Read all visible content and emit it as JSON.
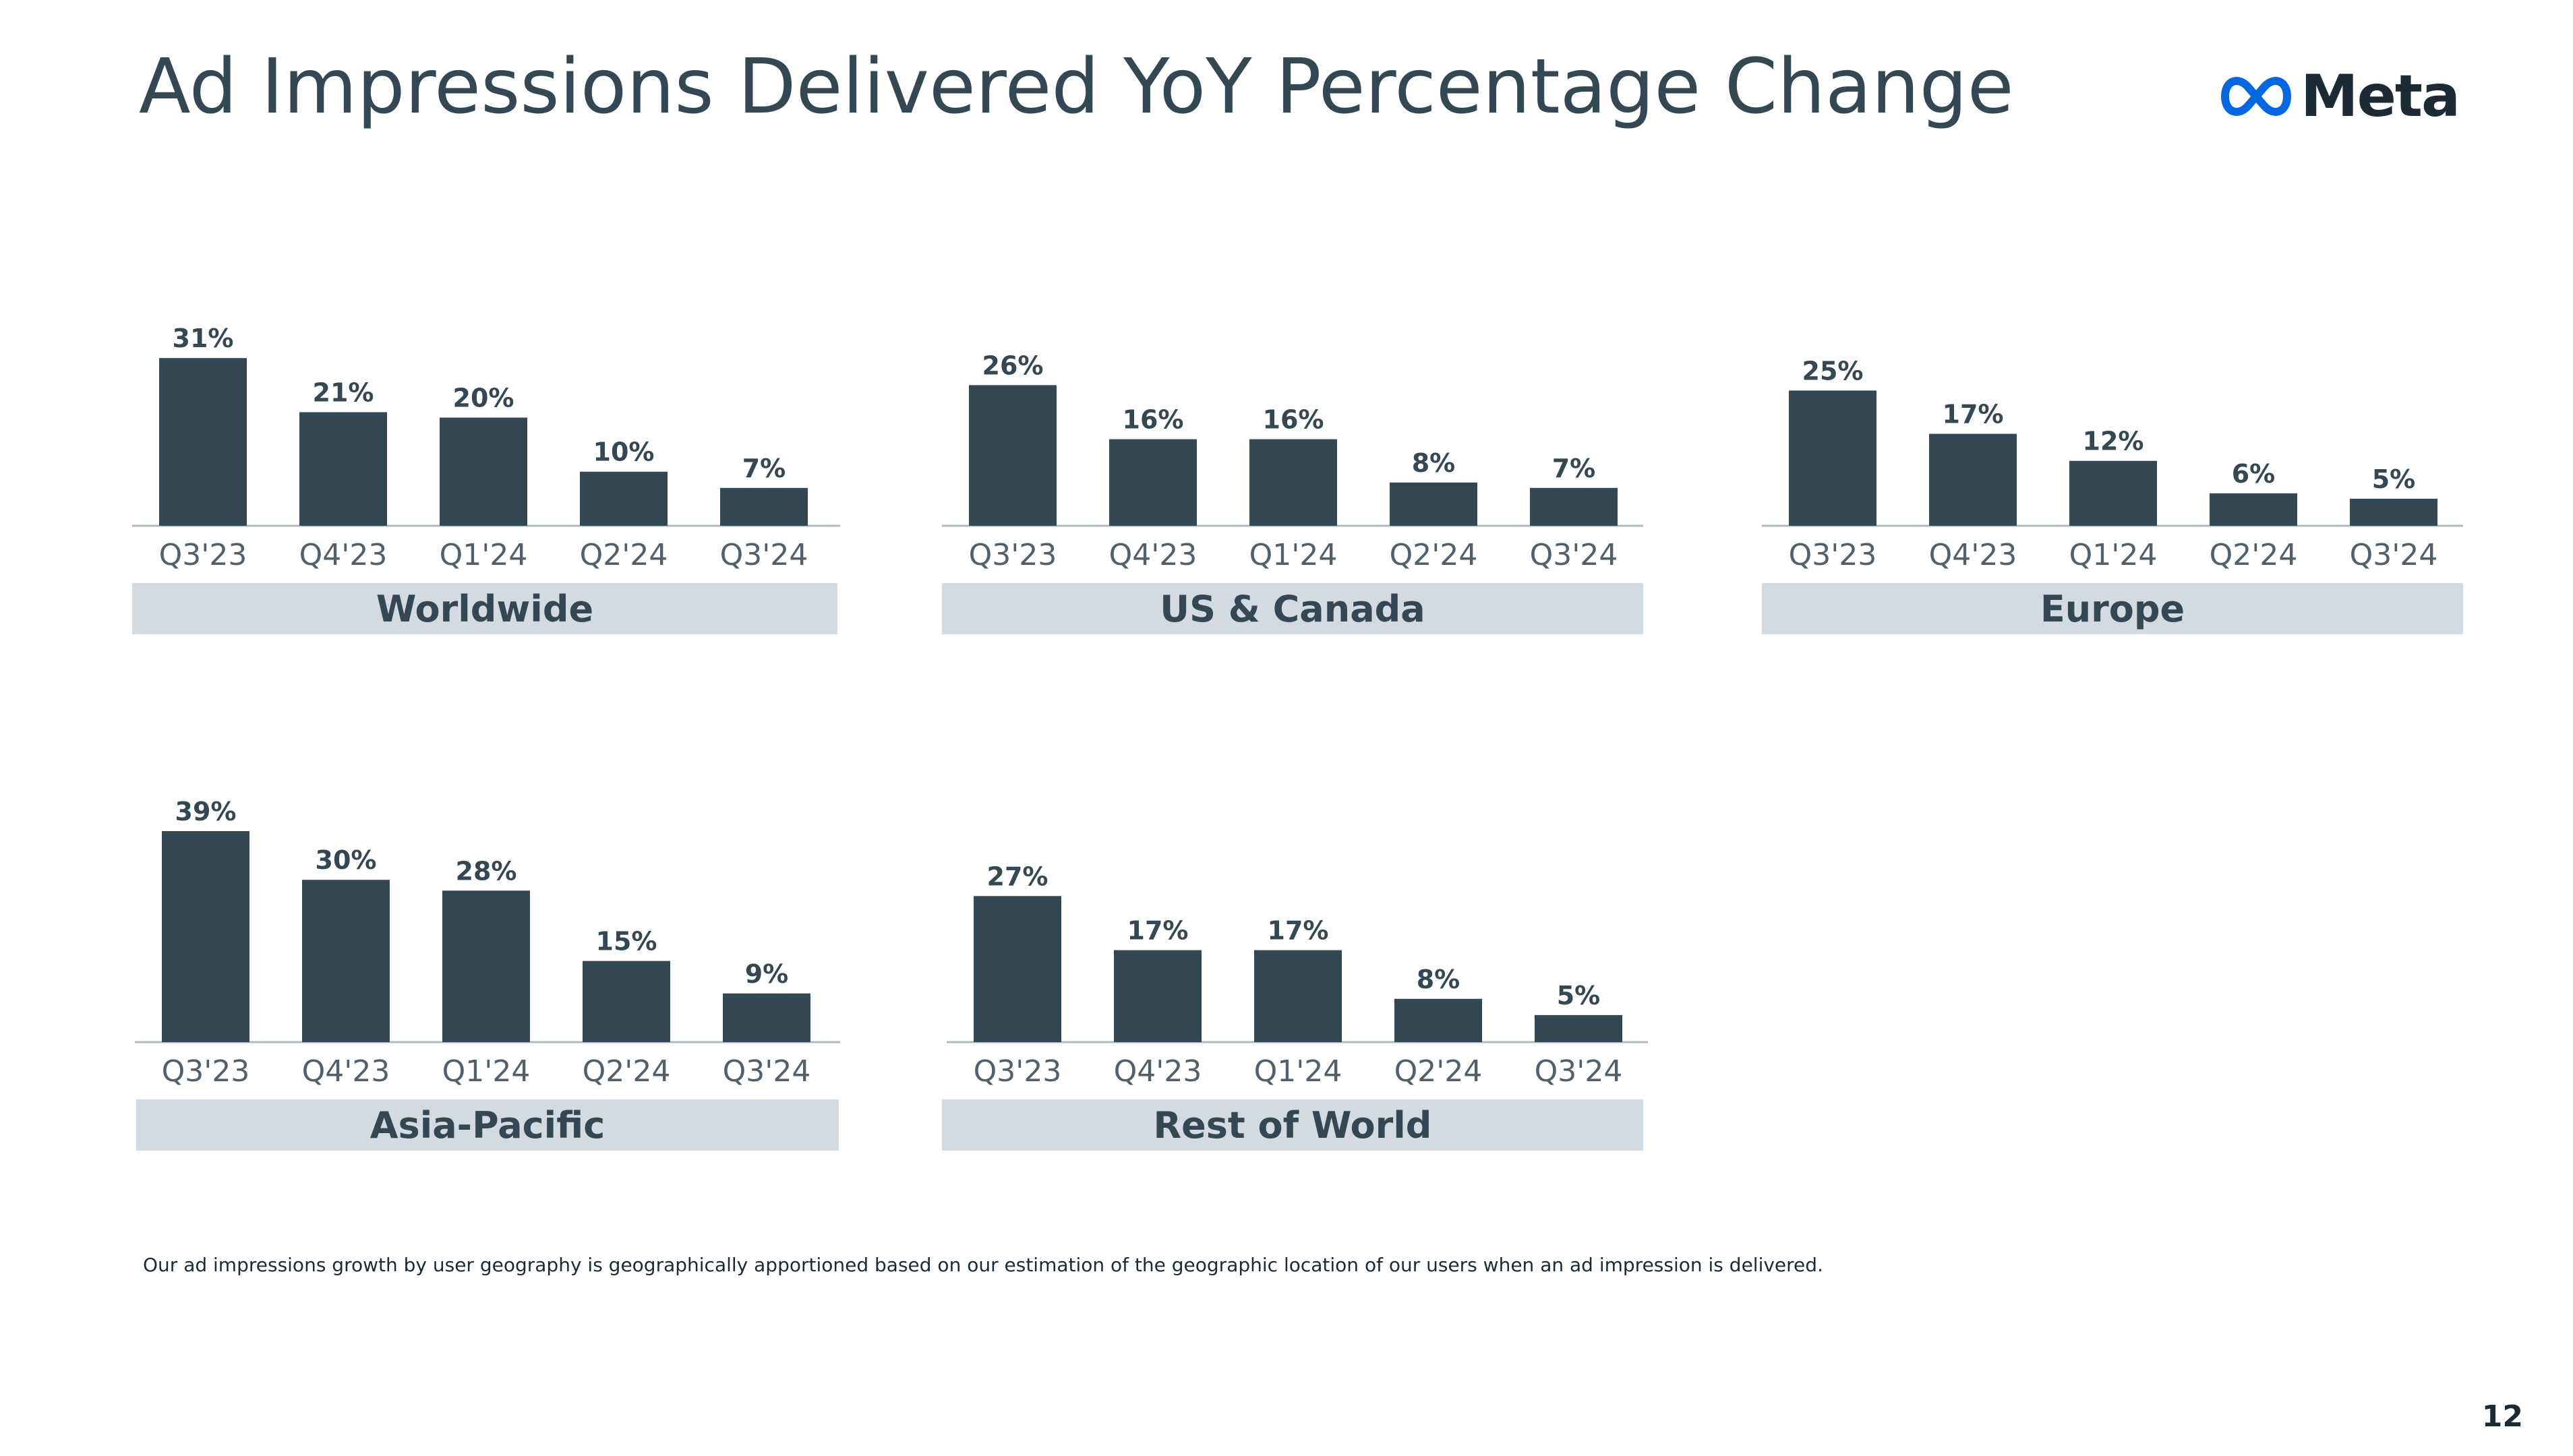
{
  "title": "Ad Impressions Delivered YoY Percentage Change",
  "logo": {
    "icon": "meta-infinity-logo-icon",
    "text": "Meta",
    "color": "#0668E1"
  },
  "footnote": "Our ad impressions growth by user geography is geographically apportioned based on our estimation of the geographic location of our users when an ad impression is delivered.",
  "page_number": "12",
  "colors": {
    "bar": "#344854",
    "label_box": "#d3dae0",
    "text": "#344854"
  },
  "chart_data": [
    {
      "type": "bar",
      "title": "Worldwide",
      "categories": [
        "Q3'23",
        "Q4'23",
        "Q1'24",
        "Q2'24",
        "Q3'24"
      ],
      "values": [
        31,
        21,
        20,
        10,
        7
      ],
      "labels": [
        "31%",
        "21%",
        "20%",
        "10%",
        "7%"
      ],
      "unit": "%",
      "ylim": [
        0,
        39
      ],
      "grid": false
    },
    {
      "type": "bar",
      "title": "US & Canada",
      "categories": [
        "Q3'23",
        "Q4'23",
        "Q1'24",
        "Q2'24",
        "Q3'24"
      ],
      "values": [
        26,
        16,
        16,
        8,
        7
      ],
      "labels": [
        "26%",
        "16%",
        "16%",
        "8%",
        "7%"
      ],
      "unit": "%",
      "ylim": [
        0,
        39
      ],
      "grid": false
    },
    {
      "type": "bar",
      "title": "Europe",
      "categories": [
        "Q3'23",
        "Q4'23",
        "Q1'24",
        "Q2'24",
        "Q3'24"
      ],
      "values": [
        25,
        17,
        12,
        6,
        5
      ],
      "labels": [
        "25%",
        "17%",
        "12%",
        "6%",
        "5%"
      ],
      "unit": "%",
      "ylim": [
        0,
        39
      ],
      "grid": false
    },
    {
      "type": "bar",
      "title": "Asia-Pacific",
      "categories": [
        "Q3'23",
        "Q4'23",
        "Q1'24",
        "Q2'24",
        "Q3'24"
      ],
      "values": [
        39,
        30,
        28,
        15,
        9
      ],
      "labels": [
        "39%",
        "30%",
        "28%",
        "15%",
        "9%"
      ],
      "unit": "%",
      "ylim": [
        0,
        39
      ],
      "grid": false
    },
    {
      "type": "bar",
      "title": "Rest of World",
      "categories": [
        "Q3'23",
        "Q4'23",
        "Q1'24",
        "Q2'24",
        "Q3'24"
      ],
      "values": [
        27,
        17,
        17,
        8,
        5
      ],
      "labels": [
        "27%",
        "17%",
        "17%",
        "8%",
        "5%"
      ],
      "unit": "%",
      "ylim": [
        0,
        39
      ],
      "grid": false
    }
  ]
}
